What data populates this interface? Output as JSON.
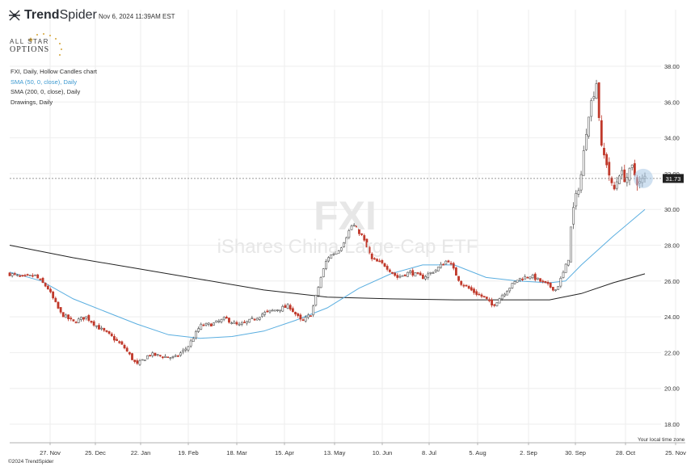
{
  "header": {
    "logo_text_bold": "Trend",
    "logo_text_light": "Spider",
    "timestamp": "Nov 6, 2024 11:39AM EST"
  },
  "branding": {
    "line1": "ALL STAR",
    "line2": "OPTIONS"
  },
  "legend": {
    "chart_title": "FXI, Daily, Hollow Candles chart",
    "sma50_label": "SMA (50, 0, close), Daily",
    "sma200_label": "SMA (200, 0, close), Daily",
    "drawings_label": "Drawings, Daily"
  },
  "watermark": {
    "symbol": "FXI",
    "name": "iShares China Large-Cap ETF"
  },
  "footer": {
    "local_time_zone": "Your local time zone",
    "copyright": "©2024 TrendSpider"
  },
  "colors": {
    "up": "#555555",
    "down": "#c0392b",
    "sma50": "#5aaee0",
    "sma200": "#222222",
    "grid": "#eeeeee",
    "price_badge": "#222222",
    "highlight": "#a9c8e6"
  },
  "chart_data": {
    "type": "candlestick",
    "symbol": "FXI",
    "interval": "Daily",
    "style": "Hollow Candles",
    "x_tick_labels": [
      "27. Nov",
      "25. Dec",
      "22. Jan",
      "19. Feb",
      "18. Mar",
      "15. Apr",
      "13. May",
      "10. Jun",
      "8. Jul",
      "5. Aug",
      "2. Sep",
      "30. Sep",
      "28. Oct",
      "25. Nov"
    ],
    "y_tick_labels": [
      "18.00",
      "20.00",
      "22.00",
      "24.00",
      "26.00",
      "28.00",
      "30.00",
      "32.00",
      "34.00",
      "36.00",
      "38.00"
    ],
    "ylim": [
      17,
      40
    ],
    "last_price": 31.73,
    "last_price_label": "31.73",
    "grid": true,
    "price_path": [
      [
        0,
        26.4
      ],
      [
        0.02,
        26.2
      ],
      [
        0.04,
        26.3
      ],
      [
        0.06,
        25.6
      ],
      [
        0.08,
        24.2
      ],
      [
        0.1,
        23.7
      ],
      [
        0.12,
        24.0
      ],
      [
        0.14,
        23.4
      ],
      [
        0.16,
        22.9
      ],
      [
        0.18,
        22.3
      ],
      [
        0.2,
        21.3
      ],
      [
        0.22,
        21.9
      ],
      [
        0.24,
        21.8
      ],
      [
        0.26,
        21.7
      ],
      [
        0.28,
        22.3
      ],
      [
        0.3,
        23.5
      ],
      [
        0.32,
        23.6
      ],
      [
        0.34,
        23.9
      ],
      [
        0.36,
        23.5
      ],
      [
        0.38,
        23.8
      ],
      [
        0.4,
        24.2
      ],
      [
        0.42,
        24.4
      ],
      [
        0.44,
        24.6
      ],
      [
        0.46,
        23.7
      ],
      [
        0.475,
        24.2
      ],
      [
        0.49,
        26.2
      ],
      [
        0.5,
        27.3
      ],
      [
        0.52,
        27.8
      ],
      [
        0.54,
        29.2
      ],
      [
        0.555,
        28.5
      ],
      [
        0.57,
        27.2
      ],
      [
        0.59,
        26.9
      ],
      [
        0.61,
        26.2
      ],
      [
        0.63,
        26.5
      ],
      [
        0.65,
        26.2
      ],
      [
        0.67,
        26.6
      ],
      [
        0.69,
        27.2
      ],
      [
        0.71,
        25.9
      ],
      [
        0.73,
        25.4
      ],
      [
        0.75,
        25.0
      ],
      [
        0.76,
        24.6
      ],
      [
        0.78,
        25.4
      ],
      [
        0.8,
        26.1
      ],
      [
        0.82,
        26.3
      ],
      [
        0.84,
        25.9
      ],
      [
        0.86,
        25.5
      ],
      [
        0.87,
        26.3
      ],
      [
        0.88,
        27.3
      ],
      [
        0.885,
        29.6
      ],
      [
        0.9,
        32.0
      ],
      [
        0.91,
        35.2
      ],
      [
        0.925,
        37.3
      ],
      [
        0.93,
        33.5
      ],
      [
        0.94,
        32.6
      ],
      [
        0.95,
        30.9
      ],
      [
        0.96,
        32.1
      ],
      [
        0.97,
        31.7
      ],
      [
        0.98,
        32.3
      ],
      [
        0.99,
        31.4
      ],
      [
        1.0,
        31.73
      ]
    ],
    "sma50_path": [
      [
        0,
        26.5
      ],
      [
        0.05,
        26.0
      ],
      [
        0.1,
        25.0
      ],
      [
        0.15,
        24.3
      ],
      [
        0.2,
        23.6
      ],
      [
        0.25,
        23.0
      ],
      [
        0.3,
        22.8
      ],
      [
        0.35,
        22.9
      ],
      [
        0.4,
        23.2
      ],
      [
        0.45,
        23.8
      ],
      [
        0.5,
        24.5
      ],
      [
        0.55,
        25.6
      ],
      [
        0.6,
        26.4
      ],
      [
        0.65,
        26.9
      ],
      [
        0.7,
        26.9
      ],
      [
        0.75,
        26.2
      ],
      [
        0.8,
        26.0
      ],
      [
        0.85,
        25.9
      ],
      [
        0.875,
        26.0
      ],
      [
        0.9,
        26.9
      ],
      [
        0.95,
        28.5
      ],
      [
        1.0,
        30.0
      ]
    ],
    "sma200_path": [
      [
        0,
        28.0
      ],
      [
        0.1,
        27.3
      ],
      [
        0.2,
        26.7
      ],
      [
        0.3,
        26.1
      ],
      [
        0.4,
        25.5
      ],
      [
        0.5,
        25.1
      ],
      [
        0.6,
        25.0
      ],
      [
        0.7,
        24.95
      ],
      [
        0.8,
        24.95
      ],
      [
        0.85,
        24.95
      ],
      [
        0.9,
        25.3
      ],
      [
        0.95,
        25.9
      ],
      [
        1.0,
        26.4
      ]
    ]
  }
}
